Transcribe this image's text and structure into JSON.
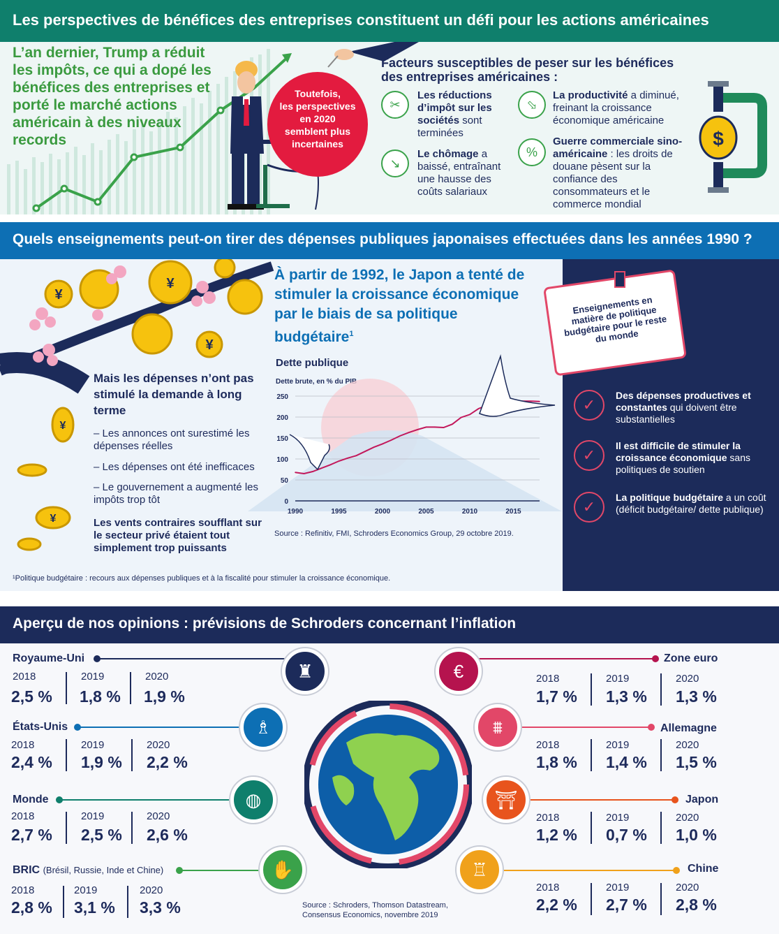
{
  "section1": {
    "title": "Les perspectives de bénéfices des entreprises constituent un défi pour les actions américaines",
    "lead": "L’an dernier, Trump a réduit les impôts, ce qui a dopé les bénéfices des entreprises et porté le marché actions américain à des niveaux records",
    "balloon": [
      "Toutefois,",
      "les perspectives",
      "en 2020",
      "semblent plus",
      "incertaines"
    ],
    "factors_title": "Facteurs susceptibles de peser sur les bénéfices des entreprises américaines :",
    "factors": [
      {
        "bold": "Les réductions d’impôt sur les sociétés",
        "rest": " sont terminées",
        "icon": "scissors-icon"
      },
      {
        "bold": "Le chômage",
        "rest": " a baissé, entraînant une hausse des coûts salariaux",
        "icon": "trend-down-icon"
      },
      {
        "bold": "La productivité",
        "rest": " a diminué, freinant la croissance économique américaine",
        "icon": "arrow-down-icon"
      },
      {
        "bold": "Guerre commerciale sino-américaine",
        "rest": " : les droits de douane pèsent sur la confiance des consommateurs et le commerce mondial",
        "icon": "percent-icon"
      }
    ]
  },
  "section2": {
    "title": "Quels enseignements peut-on tirer des dépenses publiques japonaises effectuées dans les années 1990 ?",
    "headline": "À partir de 1992, le Japon a tenté de stimuler la croissance économique par le biais de sa politique budgétaire",
    "headline_sup": "1",
    "left_title": "Mais les dépenses n’ont pas stimulé la demande à long terme",
    "bullets": [
      "– Les annonces ont surestimé les dépenses réelles",
      "– Les dépenses ont été inefficaces",
      "– Le gouvernement a augmenté les impôts trop tôt"
    ],
    "strong": "Les vents contraires soufflant sur le secteur privé étaient tout simplement trop puissants",
    "footnote": "¹Politique budgétaire : recours aux dépenses publiques et à la fiscalité pour stimuler la croissance économique.",
    "book_text": "Enseignements en matière de politique budgétaire pour le reste du monde",
    "lessons": [
      {
        "bold": "Des dépenses productives et constantes",
        "rest": " qui doivent être substantielles"
      },
      {
        "bold": "Il est difficile de stimuler la croissance économique",
        "rest": " sans politiques de soutien"
      },
      {
        "bold": "La politique budgétaire",
        "rest": " a un coût (déficit budgétaire/ dette publique)"
      }
    ]
  },
  "chart_data": {
    "type": "line",
    "title": "Dette publique",
    "subtitle": "Dette brute, en % du PIB",
    "source": "Source : Refinitiv, FMI, Schroders Economics Group, 29 octobre 2019.",
    "x": [
      1990,
      1991,
      1992,
      1993,
      1994,
      1995,
      1996,
      1997,
      1998,
      1999,
      2000,
      2001,
      2002,
      2003,
      2004,
      2005,
      2006,
      2007,
      2008,
      2009,
      2010,
      2011,
      2012,
      2013,
      2014,
      2015,
      2016,
      2017,
      2018
    ],
    "values": [
      68,
      65,
      70,
      78,
      86,
      95,
      102,
      108,
      118,
      128,
      136,
      145,
      155,
      163,
      170,
      176,
      176,
      175,
      183,
      199,
      206,
      220,
      228,
      232,
      236,
      238,
      238,
      238,
      237
    ],
    "xticks": [
      1990,
      1995,
      2000,
      2005,
      2010,
      2015
    ],
    "yticks": [
      0,
      50,
      100,
      150,
      200,
      250
    ],
    "ylim": [
      0,
      250
    ],
    "xlim": [
      1990,
      2018
    ],
    "color": "#c2185b"
  },
  "section3": {
    "title": "Aperçu de nos opinions : prévisions de Schroders concernant l’inflation",
    "source": "Source : Schroders, Thomson Datastream, Consensus Economics, novembre 2019",
    "left": [
      {
        "name": "Royaume-Uni",
        "note": "",
        "years": [
          "2018",
          "2019",
          "2020"
        ],
        "values": [
          "2,5 %",
          "1,8 %",
          "1,9 %"
        ],
        "color": "#1c2b5a",
        "icon": "big-ben-icon"
      },
      {
        "name": "États-Unis",
        "note": "",
        "years": [
          "2018",
          "2019",
          "2020"
        ],
        "values": [
          "2,4 %",
          "1,9 %",
          "2,2 %"
        ],
        "color": "#0d6fb4",
        "icon": "statue-of-liberty-icon"
      },
      {
        "name": "Monde",
        "note": "",
        "years": [
          "2018",
          "2019",
          "2020"
        ],
        "values": [
          "2,7 %",
          "2,5 %",
          "2,6 %"
        ],
        "color": "#0f7f6c",
        "icon": "globe-icon"
      },
      {
        "name": "BRIC",
        "note": "(Brésil, Russie, Inde et Chine)",
        "years": [
          "2018",
          "2019",
          "2020"
        ],
        "values": [
          "2,8 %",
          "3,1 %",
          "3,3 %"
        ],
        "color": "#3aa24a",
        "icon": "handshake-icon"
      }
    ],
    "right": [
      {
        "name": "Zone euro",
        "years": [
          "2018",
          "2019",
          "2020"
        ],
        "values": [
          "1,7 %",
          "1,3 %",
          "1,3 %"
        ],
        "color": "#b5134e",
        "icon": "euro-icon"
      },
      {
        "name": "Allemagne",
        "years": [
          "2018",
          "2019",
          "2020"
        ],
        "values": [
          "1,8 %",
          "1,4 %",
          "1,5 %"
        ],
        "color": "#e24768",
        "icon": "brandenburg-gate-icon"
      },
      {
        "name": "Japon",
        "years": [
          "2018",
          "2019",
          "2020"
        ],
        "values": [
          "1,2 %",
          "0,7 %",
          "1,0 %"
        ],
        "color": "#e8541d",
        "icon": "torii-icon"
      },
      {
        "name": "Chine",
        "years": [
          "2018",
          "2019",
          "2020"
        ],
        "values": [
          "2,2 %",
          "2,7 %",
          "2,8 %"
        ],
        "color": "#f0a11b",
        "icon": "pagoda-icon"
      }
    ]
  }
}
